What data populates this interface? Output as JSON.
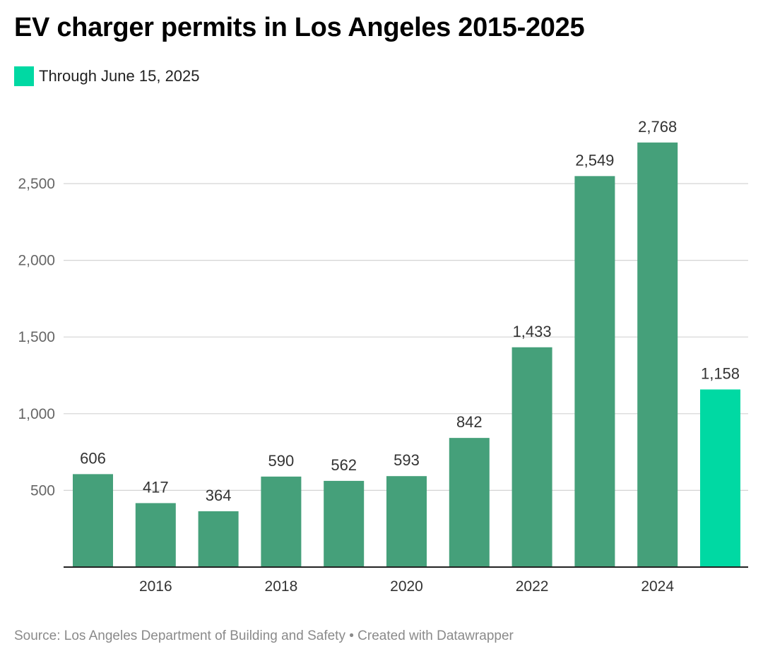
{
  "title": "EV charger permits in Los Angeles 2015-2025",
  "legend": {
    "label": "Through June 15, 2025",
    "color": "#00d9a3"
  },
  "footer": {
    "source": "Source: Los Angeles Department of Building and Safety • Created with Datawrapper"
  },
  "colors": {
    "bar": "#45a07a",
    "highlight": "#00d9a3",
    "grid": "#d4d4d4",
    "axis": "#222222"
  },
  "chart_data": {
    "type": "bar",
    "categories": [
      "2015",
      "2016",
      "2017",
      "2018",
      "2019",
      "2020",
      "2021",
      "2022",
      "2023",
      "2024",
      "2025"
    ],
    "values": [
      606,
      417,
      364,
      590,
      562,
      593,
      842,
      1433,
      2549,
      2768,
      1158
    ],
    "value_labels": [
      "606",
      "417",
      "364",
      "590",
      "562",
      "593",
      "842",
      "1,433",
      "2,549",
      "2,768",
      "1,158"
    ],
    "highlight_index": 10,
    "x_tick_labels": [
      "2016",
      "2018",
      "2020",
      "2022",
      "2024"
    ],
    "y_ticks": [
      500,
      1000,
      1500,
      2000,
      2500
    ],
    "y_tick_labels": [
      "500",
      "1,000",
      "1,500",
      "2,000",
      "2,500"
    ],
    "ylim": [
      0,
      3000
    ],
    "grid": true,
    "legend_position": "top-left"
  }
}
